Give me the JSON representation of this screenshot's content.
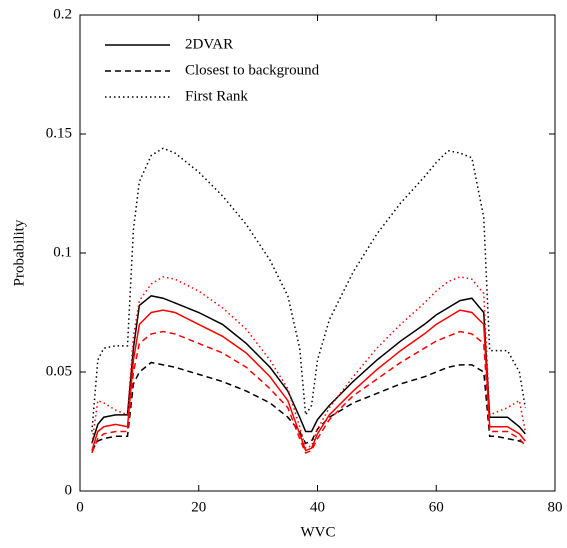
{
  "chart_data": {
    "type": "line",
    "x_label": "WVC",
    "y_label": "Probability",
    "x": [
      2,
      3,
      4,
      6,
      8,
      9,
      10,
      12,
      14,
      16,
      20,
      24,
      28,
      32,
      35,
      37,
      38,
      39,
      40,
      42,
      46,
      50,
      54,
      58,
      60,
      62,
      64,
      66,
      68,
      69,
      70,
      72,
      74,
      75
    ],
    "series": [
      {
        "name": "2DVAR",
        "color": "#000000",
        "dash": "solid",
        "values": [
          0.02,
          0.028,
          0.031,
          0.032,
          0.032,
          0.06,
          0.078,
          0.082,
          0.081,
          0.079,
          0.075,
          0.07,
          0.062,
          0.052,
          0.042,
          0.031,
          0.025,
          0.025,
          0.03,
          0.036,
          0.046,
          0.055,
          0.063,
          0.07,
          0.074,
          0.077,
          0.08,
          0.081,
          0.075,
          0.031,
          0.031,
          0.031,
          0.027,
          0.024
        ]
      },
      {
        "name": "Closest to background",
        "color": "#000000",
        "dash": "dashed",
        "values": [
          0.017,
          0.021,
          0.022,
          0.023,
          0.023,
          0.045,
          0.05,
          0.054,
          0.053,
          0.052,
          0.049,
          0.046,
          0.042,
          0.037,
          0.031,
          0.025,
          0.02,
          0.021,
          0.026,
          0.031,
          0.037,
          0.041,
          0.045,
          0.048,
          0.05,
          0.052,
          0.053,
          0.053,
          0.05,
          0.023,
          0.023,
          0.022,
          0.021,
          0.02
        ]
      },
      {
        "name": "First Rank",
        "color": "#000000",
        "dash": "dotted",
        "values": [
          0.025,
          0.055,
          0.06,
          0.061,
          0.061,
          0.11,
          0.13,
          0.141,
          0.144,
          0.142,
          0.134,
          0.124,
          0.112,
          0.097,
          0.082,
          0.06,
          0.032,
          0.036,
          0.055,
          0.072,
          0.092,
          0.108,
          0.121,
          0.132,
          0.138,
          0.143,
          0.142,
          0.14,
          0.115,
          0.059,
          0.059,
          0.059,
          0.05,
          0.035
        ]
      },
      {
        "color": "#ff0000",
        "dash": "solid",
        "values": [
          0.017,
          0.025,
          0.027,
          0.028,
          0.027,
          0.055,
          0.07,
          0.075,
          0.076,
          0.075,
          0.07,
          0.065,
          0.058,
          0.048,
          0.038,
          0.024,
          0.017,
          0.018,
          0.024,
          0.032,
          0.042,
          0.051,
          0.059,
          0.066,
          0.07,
          0.073,
          0.076,
          0.075,
          0.07,
          0.027,
          0.027,
          0.027,
          0.024,
          0.021
        ]
      },
      {
        "color": "#ff0000",
        "dash": "dashed",
        "values": [
          0.016,
          0.022,
          0.024,
          0.025,
          0.025,
          0.05,
          0.062,
          0.066,
          0.067,
          0.066,
          0.062,
          0.058,
          0.052,
          0.043,
          0.035,
          0.022,
          0.016,
          0.017,
          0.022,
          0.03,
          0.04,
          0.047,
          0.054,
          0.06,
          0.063,
          0.065,
          0.067,
          0.066,
          0.062,
          0.025,
          0.025,
          0.025,
          0.022,
          0.019
        ]
      },
      {
        "color": "#ff0000",
        "dash": "dotted",
        "values": [
          0.02,
          0.038,
          0.037,
          0.034,
          0.032,
          0.065,
          0.08,
          0.087,
          0.09,
          0.089,
          0.084,
          0.077,
          0.068,
          0.055,
          0.043,
          0.027,
          0.018,
          0.019,
          0.026,
          0.035,
          0.048,
          0.06,
          0.07,
          0.079,
          0.084,
          0.088,
          0.09,
          0.089,
          0.083,
          0.032,
          0.033,
          0.035,
          0.038,
          0.025
        ]
      }
    ],
    "xlim": [
      0,
      80
    ],
    "xticks": [
      0,
      20,
      40,
      60,
      80
    ],
    "ylim": [
      0,
      0.2
    ],
    "yticks": [
      0,
      0.05,
      0.1,
      0.15,
      0.2
    ],
    "grid": false,
    "legend": "upper left"
  }
}
